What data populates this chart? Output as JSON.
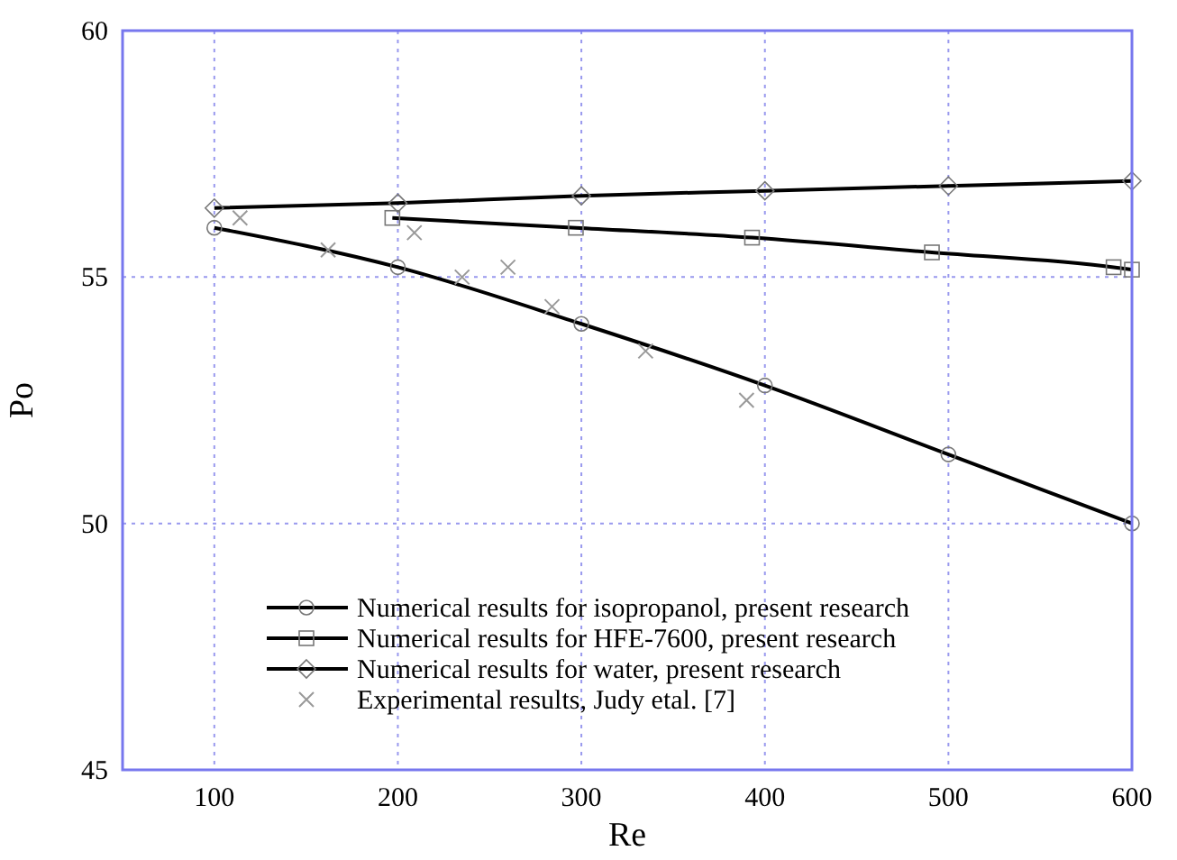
{
  "chart_data": {
    "type": "line",
    "xlabel": "Re",
    "ylabel": "Po",
    "xlim": [
      50,
      600
    ],
    "ylim": [
      45,
      60
    ],
    "xticks": [
      100,
      200,
      300,
      400,
      500,
      600
    ],
    "yticks": [
      45,
      50,
      55,
      60
    ],
    "grid": true,
    "legend": "bottom left",
    "line_style": "solid",
    "series": [
      {
        "name": "Numerical results for isopropanol, present research",
        "color": "#000000",
        "marker": "circle",
        "x": [
          100,
          200,
          300,
          400,
          500,
          600
        ],
        "values": [
          56.0,
          55.2,
          54.05,
          52.8,
          51.4,
          50.0
        ]
      },
      {
        "name": "Numerical results for HFE-7600, present research",
        "color": "#000000",
        "marker": "square",
        "x": [
          197,
          297,
          393,
          491,
          590,
          600
        ],
        "values": [
          56.2,
          56.0,
          55.8,
          55.5,
          55.2,
          55.15
        ]
      },
      {
        "name": "Numerical results for water, present research",
        "color": "#000000",
        "marker": "diamond",
        "x": [
          100,
          200,
          300,
          400,
          500,
          600
        ],
        "values": [
          56.4,
          56.5,
          56.65,
          56.75,
          56.85,
          56.95
        ]
      },
      {
        "name": "Experimental results, Judy etal. [7]",
        "type": "scatter",
        "color": "#999999",
        "marker": "cross",
        "x": [
          114,
          162,
          209,
          235,
          260,
          284,
          335,
          390
        ],
        "values": [
          56.2,
          55.55,
          55.9,
          55.0,
          55.2,
          54.4,
          53.5,
          52.5
        ]
      }
    ]
  }
}
